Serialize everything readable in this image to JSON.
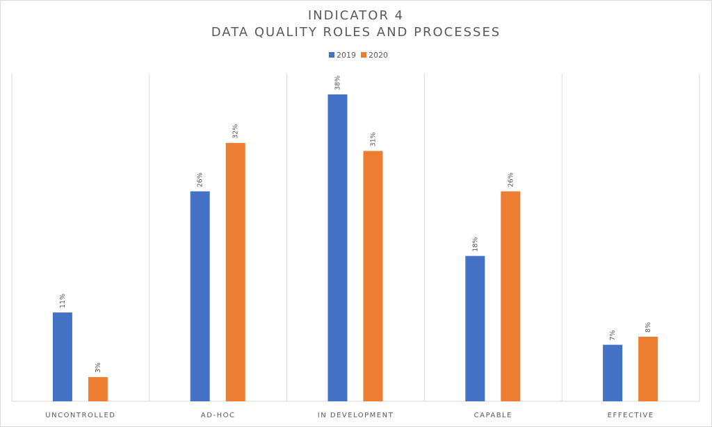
{
  "chart_data": {
    "type": "bar",
    "title": [
      "INDICATOR 4",
      "DATA QUALITY ROLES AND PROCESSES"
    ],
    "categories": [
      "UNCONTROLLED",
      "AD-HOC",
      "IN DEVELOPMENT",
      "CAPABLE",
      "EFFECTIVE"
    ],
    "series": [
      {
        "name": "2019",
        "color": "#4472C4",
        "values": [
          11,
          26,
          38,
          18,
          7
        ],
        "labels": [
          "11%",
          "26%",
          "38%",
          "18%",
          "7%"
        ]
      },
      {
        "name": "2020",
        "color": "#ED7D31",
        "values": [
          3,
          32,
          31,
          26,
          8
        ],
        "labels": [
          "3%",
          "32%",
          "31%",
          "26%",
          "8%"
        ]
      }
    ],
    "ylim": [
      0,
      38
    ],
    "legend": "top",
    "grid": "vertical category separators",
    "xlabel": "",
    "ylabel": ""
  }
}
